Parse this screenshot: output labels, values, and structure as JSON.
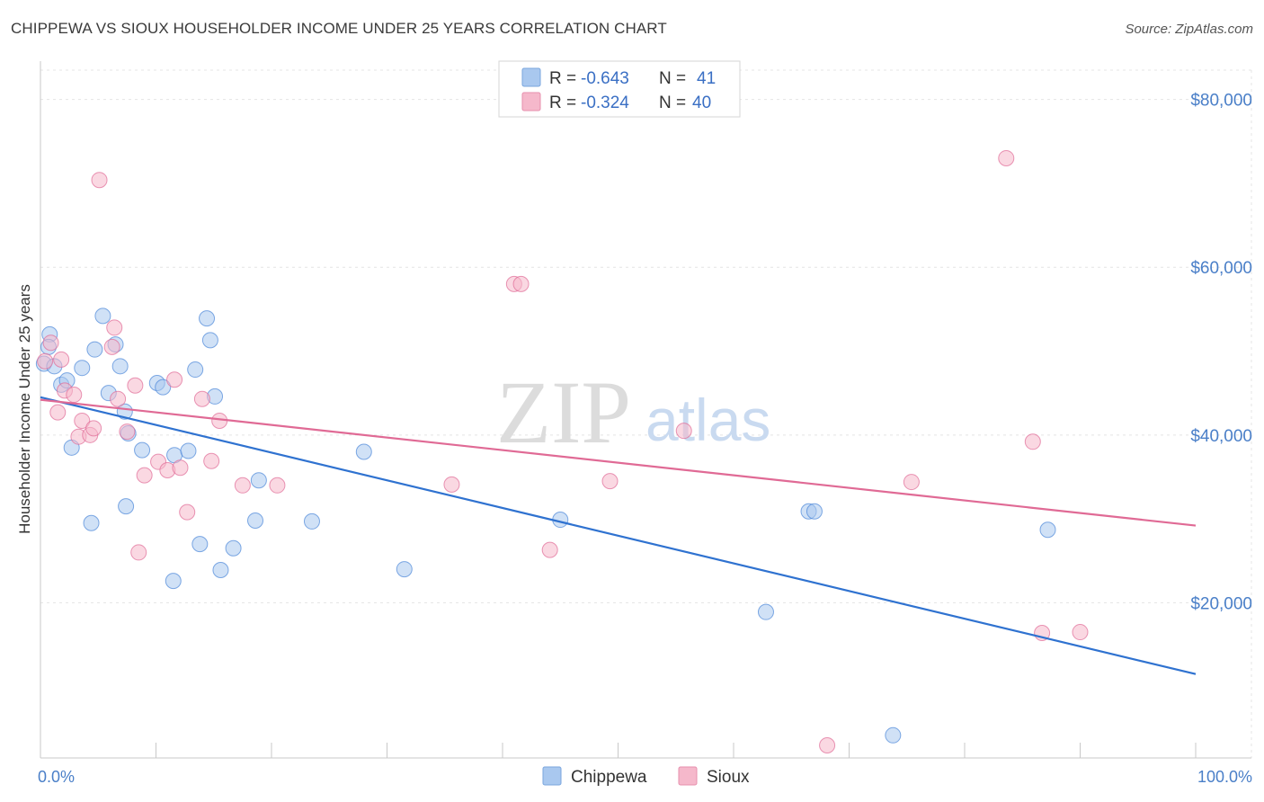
{
  "header": {
    "title": "CHIPPEWA VS SIOUX HOUSEHOLDER INCOME UNDER 25 YEARS CORRELATION CHART",
    "source": "Source: ZipAtlas.com"
  },
  "watermark": {
    "zip": "ZIP",
    "atlas": "atlas"
  },
  "legend": {
    "rows": [
      {
        "r_label": "R = ",
        "r_value": "-0.643",
        "n_label": "N = ",
        "n_value": "41",
        "color": "#a9c8ef"
      },
      {
        "r_label": "R = ",
        "r_value": "-0.324",
        "n_label": "N = ",
        "n_value": "40",
        "color": "#f5b8cb"
      }
    ]
  },
  "bottom_legend": [
    {
      "label": "Chippewa",
      "color": "#a9c8ef"
    },
    {
      "label": "Sioux",
      "color": "#f5b8cb"
    }
  ],
  "chart_data": {
    "type": "scatter",
    "title": "CHIPPEWA VS SIOUX HOUSEHOLDER INCOME UNDER 25 YEARS CORRELATION CHART",
    "ylabel": "Householder Income Under 25 years",
    "xlabel": "",
    "xlim": [
      0,
      100
    ],
    "ylim": [
      1500,
      83500
    ],
    "x_tick_labels": [
      "0.0%",
      "100.0%"
    ],
    "y_ticks": [
      20000,
      40000,
      60000,
      80000
    ],
    "y_tick_labels": [
      "$20,000",
      "$40,000",
      "$60,000",
      "$80,000"
    ],
    "grid": true,
    "series": [
      {
        "name": "Chippewa",
        "color": "#4a86d8",
        "fill": "#a9c8ef",
        "points": [
          [
            0.3,
            48500
          ],
          [
            0.8,
            52000
          ],
          [
            1.2,
            48200
          ],
          [
            1.8,
            46000
          ],
          [
            2.3,
            46500
          ],
          [
            2.7,
            38500
          ],
          [
            3.6,
            48000
          ],
          [
            4.4,
            29500
          ],
          [
            4.7,
            50200
          ],
          [
            5.4,
            54200
          ],
          [
            5.9,
            45000
          ],
          [
            6.5,
            50800
          ],
          [
            6.9,
            48200
          ],
          [
            7.3,
            42800
          ],
          [
            7.4,
            31500
          ],
          [
            7.6,
            40200
          ],
          [
            8.8,
            38200
          ],
          [
            10.1,
            46200
          ],
          [
            10.6,
            45700
          ],
          [
            11.5,
            22600
          ],
          [
            11.6,
            37600
          ],
          [
            12.8,
            38100
          ],
          [
            13.4,
            47800
          ],
          [
            13.8,
            27000
          ],
          [
            14.4,
            53900
          ],
          [
            14.7,
            51300
          ],
          [
            15.1,
            44600
          ],
          [
            15.6,
            23900
          ],
          [
            16.7,
            26500
          ],
          [
            18.6,
            29800
          ],
          [
            18.9,
            34600
          ],
          [
            23.5,
            29700
          ],
          [
            28.0,
            38000
          ],
          [
            31.5,
            24000
          ],
          [
            45.0,
            29900
          ],
          [
            62.8,
            18900
          ],
          [
            66.5,
            30900
          ],
          [
            67.0,
            30900
          ],
          [
            73.8,
            4200
          ],
          [
            87.2,
            28700
          ],
          [
            0.7,
            50500
          ]
        ]
      },
      {
        "name": "Sioux",
        "color": "#e06a95",
        "fill": "#f5b8cb",
        "points": [
          [
            0.4,
            48800
          ],
          [
            0.9,
            51000
          ],
          [
            1.5,
            42700
          ],
          [
            1.8,
            49000
          ],
          [
            2.1,
            45300
          ],
          [
            2.9,
            44800
          ],
          [
            3.3,
            39800
          ],
          [
            3.6,
            41700
          ],
          [
            4.3,
            40000
          ],
          [
            4.6,
            40800
          ],
          [
            5.1,
            70400
          ],
          [
            6.2,
            50500
          ],
          [
            6.4,
            52800
          ],
          [
            6.7,
            44300
          ],
          [
            7.5,
            40400
          ],
          [
            8.2,
            45900
          ],
          [
            8.5,
            26000
          ],
          [
            9.0,
            35200
          ],
          [
            10.2,
            36800
          ],
          [
            11.0,
            35800
          ],
          [
            11.6,
            46600
          ],
          [
            12.1,
            36100
          ],
          [
            12.7,
            30800
          ],
          [
            14.0,
            44300
          ],
          [
            14.8,
            36900
          ],
          [
            15.5,
            41700
          ],
          [
            17.5,
            34000
          ],
          [
            20.5,
            34000
          ],
          [
            35.6,
            34100
          ],
          [
            41.0,
            58000
          ],
          [
            41.6,
            58000
          ],
          [
            44.1,
            26300
          ],
          [
            49.3,
            34500
          ],
          [
            55.7,
            40500
          ],
          [
            68.1,
            3000
          ],
          [
            75.4,
            34400
          ],
          [
            83.6,
            73000
          ],
          [
            85.9,
            39200
          ],
          [
            86.7,
            16400
          ],
          [
            90.0,
            16500
          ]
        ]
      }
    ],
    "trendlines": [
      {
        "series": "Chippewa",
        "x": [
          0,
          100
        ],
        "y": [
          44500,
          11500
        ],
        "color": "#2f72d0"
      },
      {
        "series": "Sioux",
        "x": [
          0,
          100
        ],
        "y": [
          44200,
          29200
        ],
        "color": "#e06a95"
      }
    ]
  }
}
